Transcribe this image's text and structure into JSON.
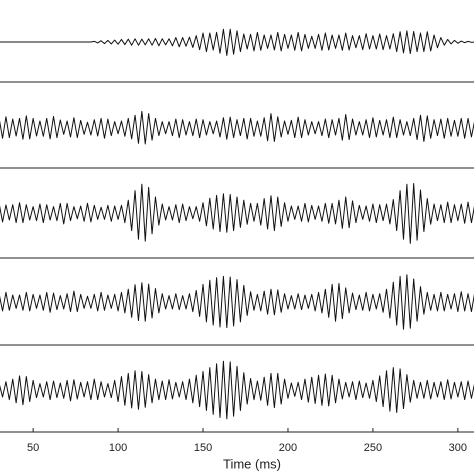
{
  "chart_data": {
    "type": "line",
    "xlabel": "Time (ms)",
    "x": [
      30,
      32,
      34,
      36,
      38,
      40,
      42,
      44,
      46,
      48,
      50,
      52,
      54,
      56,
      58,
      60,
      62,
      64,
      66,
      68,
      70,
      72,
      74,
      76,
      78,
      80,
      82,
      84,
      86,
      88,
      90,
      92,
      94,
      96,
      98,
      100,
      102,
      104,
      106,
      108,
      110,
      112,
      114,
      116,
      118,
      120,
      122,
      124,
      126,
      128,
      130,
      132,
      134,
      136,
      138,
      140,
      142,
      144,
      146,
      148,
      150,
      152,
      154,
      156,
      158,
      160,
      162,
      164,
      166,
      168,
      170,
      172,
      174,
      176,
      178,
      180,
      182,
      184,
      186,
      188,
      190,
      192,
      194,
      196,
      198,
      200,
      202,
      204,
      206,
      208,
      210,
      212,
      214,
      216,
      218,
      220,
      222,
      224,
      226,
      228,
      230,
      232,
      234,
      236,
      238,
      240,
      242,
      244,
      246,
      248,
      250,
      252,
      254,
      256,
      258,
      260,
      262,
      264,
      266,
      268,
      270,
      272,
      274,
      276,
      278,
      280,
      282,
      284,
      286,
      288,
      290,
      292,
      294,
      296,
      298,
      300,
      302,
      304,
      306,
      308,
      310
    ],
    "xlim": [
      30.5,
      309.5
    ],
    "xticks": [
      50,
      100,
      150,
      200,
      250,
      300
    ],
    "ylim": [
      -1,
      1
    ],
    "series": [
      {
        "color": "#111111",
        "values": [
          0,
          0,
          0,
          0,
          0,
          0,
          0,
          0,
          0,
          0,
          0,
          0,
          0,
          0,
          0,
          0,
          0,
          0,
          0,
          0,
          0,
          0,
          0,
          0,
          0,
          0,
          0,
          0,
          0.02,
          -0.03,
          0.04,
          -0.05,
          0.05,
          -0.06,
          0.06,
          -0.07,
          0.08,
          -0.08,
          0.09,
          -0.1,
          0.1,
          -0.1,
          0.09,
          -0.09,
          0.1,
          -0.1,
          0.11,
          -0.12,
          0.1,
          -0.09,
          0.1,
          -0.12,
          0.14,
          -0.15,
          0.14,
          -0.13,
          0.15,
          -0.17,
          0.2,
          -0.24,
          0.28,
          -0.3,
          0.28,
          -0.25,
          0.3,
          -0.35,
          0.4,
          -0.42,
          0.4,
          -0.38,
          0.35,
          -0.3,
          0.25,
          -0.22,
          0.24,
          -0.28,
          0.3,
          -0.26,
          0.22,
          -0.2,
          0.22,
          -0.25,
          0.3,
          -0.28,
          0.24,
          -0.2,
          0.22,
          -0.26,
          0.3,
          -0.28,
          0.24,
          -0.2,
          0.18,
          -0.2,
          0.24,
          -0.26,
          0.28,
          -0.25,
          0.22,
          -0.2,
          0.22,
          -0.26,
          0.28,
          -0.25,
          0.2,
          -0.18,
          0.2,
          -0.24,
          0.26,
          -0.22,
          0.2,
          -0.22,
          0.25,
          -0.24,
          0.2,
          -0.22,
          0.26,
          -0.3,
          0.32,
          -0.34,
          0.35,
          -0.36,
          0.33,
          -0.3,
          0.28,
          -0.3,
          0.32,
          -0.28,
          0.22,
          -0.18,
          0.14,
          -0.1,
          0.08,
          -0.06,
          0.05,
          -0.04,
          0.03,
          -0.02,
          0.02,
          -0.01,
          0
        ]
      },
      {
        "color": "#111111",
        "values": [
          0.3,
          -0.32,
          0.35,
          -0.3,
          0.28,
          -0.25,
          0.3,
          -0.35,
          0.38,
          -0.34,
          0.3,
          -0.25,
          0.22,
          -0.26,
          0.3,
          -0.34,
          0.36,
          -0.3,
          0.25,
          -0.2,
          0.22,
          -0.28,
          0.32,
          -0.3,
          0.24,
          -0.2,
          0.18,
          -0.22,
          0.26,
          -0.25,
          0.3,
          -0.32,
          0.28,
          -0.24,
          0.2,
          -0.18,
          0.22,
          -0.26,
          0.3,
          -0.34,
          0.4,
          -0.48,
          0.52,
          -0.5,
          0.45,
          -0.38,
          0.3,
          -0.24,
          0.2,
          -0.18,
          0.2,
          -0.24,
          0.28,
          -0.3,
          0.26,
          -0.22,
          0.2,
          -0.24,
          0.28,
          -0.3,
          0.26,
          -0.22,
          0.2,
          -0.18,
          0.22,
          -0.28,
          0.32,
          -0.35,
          0.34,
          -0.3,
          0.26,
          -0.24,
          0.3,
          -0.34,
          0.3,
          -0.26,
          0.22,
          -0.26,
          0.32,
          -0.4,
          0.45,
          -0.42,
          0.35,
          -0.28,
          0.22,
          -0.2,
          0.24,
          -0.3,
          0.34,
          -0.3,
          0.26,
          -0.22,
          0.2,
          -0.18,
          0.2,
          -0.24,
          0.28,
          -0.3,
          0.26,
          -0.22,
          0.3,
          -0.38,
          0.42,
          -0.36,
          0.28,
          -0.22,
          0.2,
          -0.22,
          0.26,
          -0.3,
          0.32,
          -0.28,
          0.24,
          -0.22,
          0.26,
          -0.3,
          0.34,
          -0.3,
          0.26,
          -0.22,
          0.2,
          -0.24,
          0.3,
          -0.36,
          0.4,
          -0.42,
          0.38,
          -0.32,
          0.26,
          -0.24,
          0.28,
          -0.32,
          0.3,
          -0.26,
          0.24,
          -0.26,
          0.3,
          -0.32,
          0.3,
          -0.28,
          0.26
        ]
      },
      {
        "color": "#111111",
        "values": [
          0.3,
          -0.28,
          0.25,
          -0.22,
          0.26,
          -0.3,
          0.32,
          -0.3,
          0.26,
          -0.22,
          0.2,
          -0.24,
          0.28,
          -0.3,
          0.26,
          -0.22,
          0.2,
          -0.24,
          0.3,
          -0.34,
          0.3,
          -0.24,
          0.2,
          -0.18,
          0.22,
          -0.26,
          0.3,
          -0.28,
          0.24,
          -0.2,
          0.18,
          -0.2,
          0.24,
          -0.26,
          0.22,
          -0.2,
          0.24,
          -0.3,
          0.4,
          -0.55,
          0.7,
          -0.82,
          0.9,
          -0.88,
          0.8,
          -0.65,
          0.5,
          -0.38,
          0.28,
          -0.22,
          0.2,
          -0.22,
          0.26,
          -0.3,
          0.28,
          -0.24,
          0.2,
          -0.18,
          0.2,
          -0.26,
          0.32,
          -0.4,
          0.46,
          -0.5,
          0.55,
          -0.58,
          0.6,
          -0.6,
          0.58,
          -0.55,
          0.5,
          -0.45,
          0.4,
          -0.35,
          0.3,
          -0.26,
          0.3,
          -0.38,
          0.45,
          -0.5,
          0.54,
          -0.55,
          0.5,
          -0.42,
          0.32,
          -0.26,
          0.22,
          -0.2,
          0.22,
          -0.26,
          0.3,
          -0.28,
          0.24,
          -0.2,
          0.22,
          -0.26,
          0.3,
          -0.32,
          0.3,
          -0.34,
          0.4,
          -0.48,
          0.5,
          -0.46,
          0.38,
          -0.3,
          0.24,
          -0.2,
          0.22,
          -0.26,
          0.28,
          -0.3,
          0.26,
          -0.24,
          0.28,
          -0.34,
          0.42,
          -0.55,
          0.7,
          -0.82,
          0.9,
          -0.95,
          0.92,
          -0.85,
          0.72,
          -0.58,
          0.45,
          -0.35,
          0.28,
          -0.24,
          0.26,
          -0.3,
          0.34,
          -0.3,
          0.26,
          -0.24,
          0.28,
          -0.32,
          0.34,
          -0.3,
          0.28
        ]
      },
      {
        "color": "#111111",
        "values": [
          0.25,
          -0.28,
          0.3,
          -0.26,
          0.22,
          -0.2,
          0.22,
          -0.26,
          0.3,
          -0.28,
          0.24,
          -0.2,
          0.22,
          -0.26,
          0.3,
          -0.32,
          0.28,
          -0.24,
          0.2,
          -0.22,
          0.26,
          -0.3,
          0.34,
          -0.3,
          0.24,
          -0.2,
          0.18,
          -0.2,
          0.24,
          -0.28,
          0.3,
          -0.26,
          0.22,
          -0.2,
          0.24,
          -0.28,
          0.3,
          -0.34,
          0.4,
          -0.48,
          0.54,
          -0.58,
          0.6,
          -0.6,
          0.56,
          -0.5,
          0.42,
          -0.34,
          0.26,
          -0.22,
          0.2,
          -0.22,
          0.26,
          -0.24,
          0.2,
          -0.22,
          0.26,
          -0.3,
          0.36,
          -0.45,
          0.55,
          -0.62,
          0.68,
          -0.72,
          0.76,
          -0.78,
          0.8,
          -0.8,
          0.78,
          -0.75,
          0.7,
          -0.62,
          0.52,
          -0.42,
          0.32,
          -0.26,
          0.24,
          -0.28,
          0.34,
          -0.38,
          0.4,
          -0.4,
          0.38,
          -0.32,
          0.26,
          -0.22,
          0.2,
          -0.22,
          0.26,
          -0.24,
          0.22,
          -0.2,
          0.24,
          -0.28,
          0.3,
          -0.34,
          0.4,
          -0.48,
          0.55,
          -0.6,
          0.58,
          -0.52,
          0.44,
          -0.34,
          0.28,
          -0.24,
          0.22,
          -0.26,
          0.3,
          -0.28,
          0.24,
          -0.22,
          0.26,
          -0.32,
          0.4,
          -0.5,
          0.62,
          -0.72,
          0.8,
          -0.85,
          0.85,
          -0.82,
          0.72,
          -0.6,
          0.48,
          -0.38,
          0.3,
          -0.26,
          0.24,
          -0.28,
          0.3,
          -0.28,
          0.24,
          -0.22,
          0.26,
          -0.3,
          0.32,
          -0.28,
          0.26,
          -0.3,
          0.32
        ]
      },
      {
        "color": "#111111",
        "values": [
          0.2,
          -0.22,
          0.26,
          -0.3,
          0.34,
          -0.4,
          0.44,
          -0.46,
          0.42,
          -0.36,
          0.3,
          -0.24,
          0.2,
          -0.22,
          0.26,
          -0.3,
          0.28,
          -0.24,
          0.22,
          -0.26,
          0.3,
          -0.34,
          0.32,
          -0.28,
          0.24,
          -0.22,
          0.26,
          -0.3,
          0.34,
          -0.3,
          0.26,
          -0.22,
          0.2,
          -0.24,
          0.3,
          -0.36,
          0.42,
          -0.48,
          0.52,
          -0.56,
          0.6,
          -0.6,
          0.58,
          -0.54,
          0.48,
          -0.4,
          0.34,
          -0.3,
          0.28,
          -0.3,
          0.32,
          -0.28,
          0.24,
          -0.22,
          0.26,
          -0.3,
          0.34,
          -0.4,
          0.46,
          -0.52,
          0.58,
          -0.64,
          0.7,
          -0.76,
          0.82,
          -0.86,
          0.9,
          -0.9,
          0.88,
          -0.82,
          0.74,
          -0.64,
          0.54,
          -0.44,
          0.36,
          -0.3,
          0.28,
          -0.32,
          0.4,
          -0.48,
          0.52,
          -0.55,
          0.52,
          -0.44,
          0.34,
          -0.26,
          0.22,
          -0.2,
          0.24,
          -0.3,
          0.34,
          -0.38,
          0.4,
          -0.42,
          0.46,
          -0.48,
          0.5,
          -0.5,
          0.46,
          -0.4,
          0.34,
          -0.28,
          0.24,
          -0.22,
          0.26,
          -0.3,
          0.28,
          -0.24,
          0.22,
          -0.26,
          0.3,
          -0.36,
          0.44,
          -0.52,
          0.6,
          -0.66,
          0.7,
          -0.7,
          0.66,
          -0.58,
          0.48,
          -0.38,
          0.3,
          -0.26,
          0.24,
          -0.26,
          0.3,
          -0.28,
          0.24,
          -0.22,
          0.26,
          -0.3,
          0.32,
          -0.28,
          0.24,
          -0.22,
          0.26,
          -0.3,
          0.28,
          -0.26,
          0.24
        ]
      }
    ]
  }
}
